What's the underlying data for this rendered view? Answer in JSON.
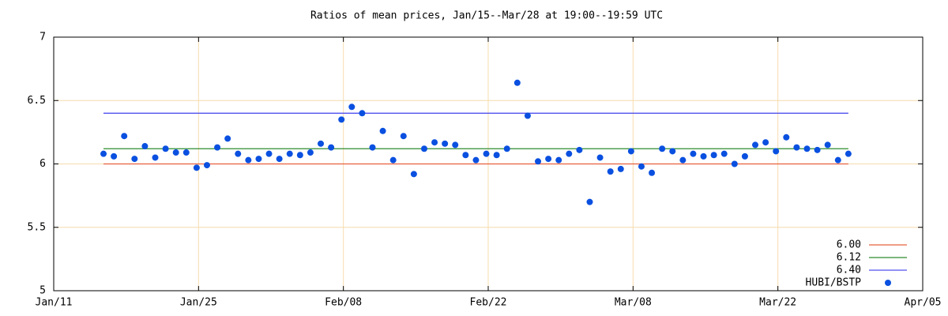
{
  "chart_data": {
    "type": "scatter",
    "title": "Ratios of mean prices, Jan/15--Mar/28 at 19:00--19:59 UTC",
    "xlim": [
      "Jan/11",
      "Apr/05"
    ],
    "xticks": [
      "Jan/11",
      "Jan/25",
      "Feb/08",
      "Feb/22",
      "Mar/08",
      "Mar/22",
      "Apr/05"
    ],
    "ylim": [
      5,
      7
    ],
    "yticks": [
      5,
      5.5,
      6,
      6.5,
      7
    ],
    "grid": true,
    "legend": "lower right",
    "hlines": [
      {
        "name": "6.00",
        "value": 6,
        "color": "#e8603c"
      },
      {
        "name": "6.12",
        "value": 6.12,
        "color": "#2e8b2e"
      },
      {
        "name": "6.40",
        "value": 6.4,
        "color": "#5050f0"
      }
    ],
    "x": [
      "Jan/15",
      "Jan/16",
      "Jan/17",
      "Jan/18",
      "Jan/19",
      "Jan/20",
      "Jan/21",
      "Jan/22",
      "Jan/23",
      "Jan/24",
      "Jan/25",
      "Jan/26",
      "Jan/27",
      "Jan/28",
      "Jan/29",
      "Jan/30",
      "Jan/31",
      "Feb/01",
      "Feb/02",
      "Feb/03",
      "Feb/04",
      "Feb/05",
      "Feb/06",
      "Feb/07",
      "Feb/08",
      "Feb/09",
      "Feb/10",
      "Feb/11",
      "Feb/12",
      "Feb/13",
      "Feb/14",
      "Feb/15",
      "Feb/16",
      "Feb/17",
      "Feb/18",
      "Feb/19",
      "Feb/20",
      "Feb/21",
      "Feb/22",
      "Feb/23",
      "Feb/24",
      "Feb/25",
      "Feb/26",
      "Feb/27",
      "Feb/28",
      "Mar/01",
      "Mar/02",
      "Mar/03",
      "Mar/04",
      "Mar/05",
      "Mar/06",
      "Mar/07",
      "Mar/08",
      "Mar/09",
      "Mar/10",
      "Mar/11",
      "Mar/12",
      "Mar/13",
      "Mar/14",
      "Mar/15",
      "Mar/16",
      "Mar/17",
      "Mar/18",
      "Mar/19",
      "Mar/20",
      "Mar/21",
      "Mar/22",
      "Mar/23",
      "Mar/24",
      "Mar/25",
      "Mar/26",
      "Mar/27",
      "Mar/28"
    ],
    "series": [
      {
        "name": "HUBI/BSTP",
        "color": "#0a50e0",
        "values": [
          6.08,
          6.06,
          6.22,
          6.04,
          6.14,
          6.05,
          6.12,
          6.09,
          6.09,
          5.97,
          5.99,
          6.13,
          6.2,
          6.08,
          6.03,
          6.04,
          6.08,
          6.04,
          6.08,
          6.07,
          6.09,
          6.16,
          6.13,
          6.35,
          6.45,
          6.4,
          6.13,
          6.26,
          6.03,
          6.22,
          5.92,
          6.12,
          6.17,
          6.16,
          6.15,
          6.07,
          6.03,
          6.08,
          6.07,
          6.12,
          6.64,
          6.38,
          6.02,
          6.04,
          6.03,
          6.08,
          6.11,
          5.7,
          6.05,
          5.94,
          5.96,
          6.1,
          5.98,
          5.93,
          6.12,
          6.1,
          6.03,
          6.08,
          6.06,
          6.07,
          6.08,
          6,
          6.06,
          6.15,
          6.17,
          6.1,
          6.21,
          6.13,
          6.12,
          6.11,
          6.15,
          6.03,
          6.08
        ]
      }
    ]
  }
}
